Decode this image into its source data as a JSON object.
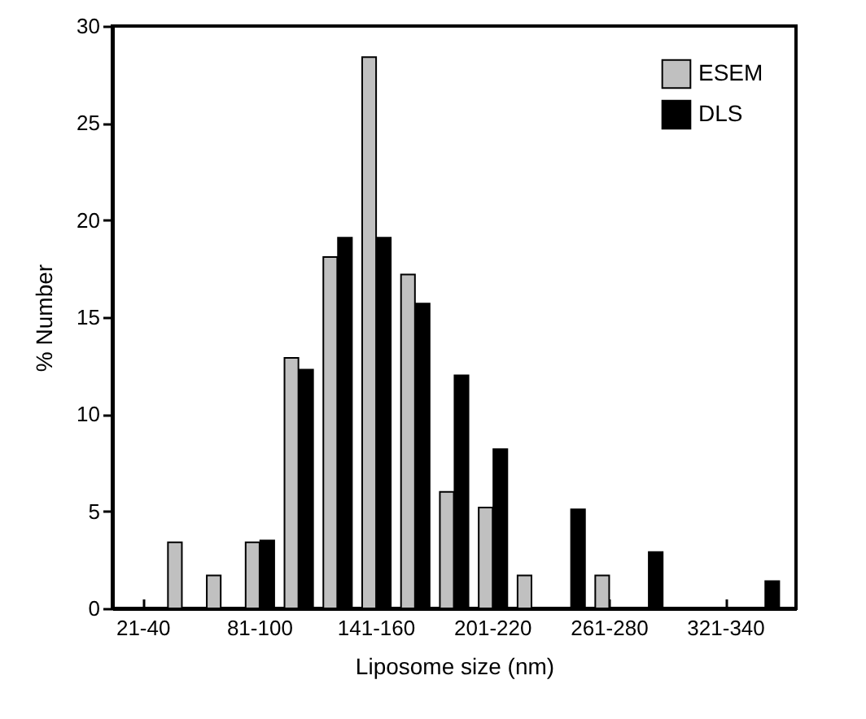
{
  "chart_data": {
    "type": "bar",
    "xlabel": "Liposome size (nm)",
    "ylabel": "% Number",
    "categories": [
      "21-40",
      null,
      null,
      "81-100",
      null,
      null,
      "141-160",
      null,
      null,
      "201-220",
      null,
      null,
      "261-280",
      null,
      null,
      "321-340",
      null
    ],
    "series": [
      {
        "name": "ESEM",
        "color": "#c0c0c0",
        "values": [
          null,
          3.4,
          1.7,
          3.4,
          12.9,
          18.1,
          28.4,
          17.2,
          6.0,
          5.2,
          1.7,
          null,
          1.7,
          null,
          null,
          null,
          null
        ]
      },
      {
        "name": "DLS",
        "color": "#000000",
        "values": [
          null,
          null,
          null,
          3.5,
          12.3,
          19.1,
          19.1,
          15.7,
          12.0,
          8.2,
          null,
          5.1,
          null,
          2.9,
          null,
          null,
          1.4
        ]
      }
    ],
    "ylim": [
      0,
      30
    ],
    "yticks": [
      0,
      5,
      10,
      15,
      20,
      25,
      30
    ],
    "legend": "top right"
  }
}
